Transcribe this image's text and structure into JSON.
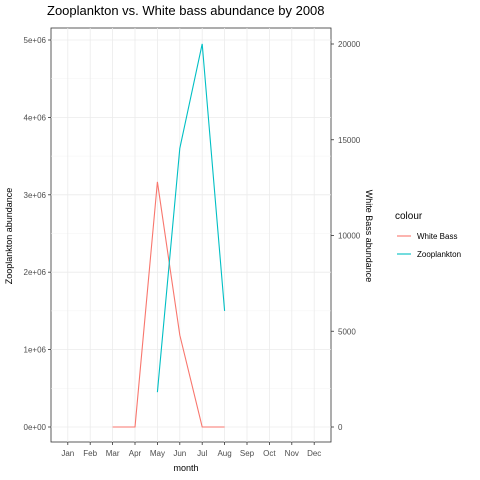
{
  "chart_data": {
    "type": "line",
    "title": "Zooplankton vs. White bass abundance by 2008",
    "xlabel": "month",
    "ylabel_left": "Zooplankton abundance",
    "ylabel_right": "White Bass abundance",
    "categories": [
      "Jan",
      "Feb",
      "Mar",
      "Apr",
      "May",
      "Jun",
      "Jul",
      "Aug",
      "Sep",
      "Oct",
      "Nov",
      "Dec"
    ],
    "ylim_left": [
      0,
      5000000
    ],
    "ylim_right": [
      0,
      20000
    ],
    "yticks_left": [
      "0e+00",
      "1e+06",
      "2e+06",
      "3e+06",
      "4e+06",
      "5e+06"
    ],
    "yticks_right": [
      "0",
      "5000",
      "10000",
      "15000",
      "20000"
    ],
    "grid": true,
    "legend": {
      "title": "colour",
      "placement": "right",
      "entries": [
        "White Bass",
        "Zooplankton"
      ]
    },
    "series": [
      {
        "name": "White Bass",
        "axis": "right",
        "color": "#F8766D",
        "x": [
          "Mar",
          "Apr",
          "May",
          "Jun",
          "Jul",
          "Aug"
        ],
        "values": [
          0,
          0,
          12800,
          4800,
          0,
          0
        ]
      },
      {
        "name": "Zooplankton",
        "axis": "left",
        "color": "#00BFC4",
        "x": [
          "May",
          "Jun",
          "Jul",
          "Aug"
        ],
        "values": [
          450000,
          3600000,
          4950000,
          1500000
        ]
      }
    ]
  }
}
